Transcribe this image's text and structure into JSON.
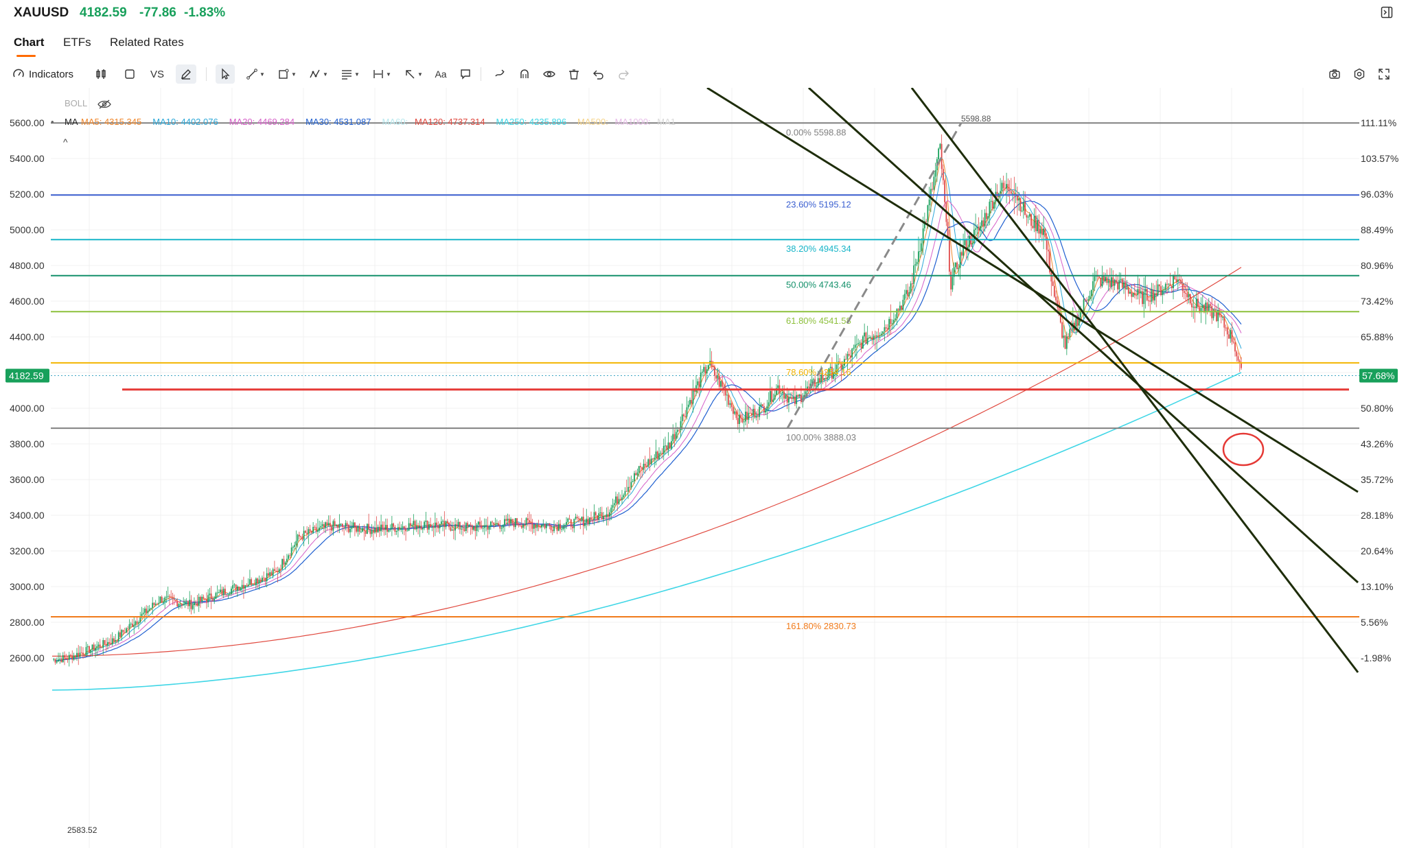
{
  "header": {
    "symbol": "XAUUSD",
    "price": "4182.59",
    "change": "-77.86",
    "change_pct": "-1.83%",
    "price_color": "#18a05b"
  },
  "tabs": [
    {
      "label": "Chart",
      "active": true
    },
    {
      "label": "ETFs",
      "active": false
    },
    {
      "label": "Related Rates",
      "active": false
    }
  ],
  "toolbar": {
    "indicators_label": "Indicators",
    "vs_label": "VS",
    "text_tool_label": "Aa",
    "icons": [
      "gauge-icon",
      "candlestick-icon",
      "square-icon",
      "pen-icon",
      "cursor-icon",
      "line-tool-icon",
      "shape-tool-icon",
      "pattern-tool-icon",
      "fib-tool-icon",
      "measure-tool-icon",
      "arrow-tool-icon",
      "text-tool-icon",
      "comment-icon",
      "brush-icon",
      "magnet-icon",
      "eye-icon",
      "trash-icon",
      "undo-icon",
      "redo-icon",
      "camera-icon",
      "settings-icon",
      "fullscreen-icon"
    ]
  },
  "legend": {
    "boll_label": "BOLL",
    "ma_label": "MA",
    "ma_items": [
      {
        "text": "MA5: 4315.345",
        "color": "#f0862a"
      },
      {
        "text": "MA10: 4402.076",
        "color": "#2aa7d8"
      },
      {
        "text": "MA20: 4469.284",
        "color": "#d660c8"
      },
      {
        "text": "MA30: 4531.087",
        "color": "#1f5fd0"
      },
      {
        "text": "MA60:",
        "color": "#b7e8ee"
      },
      {
        "text": "MA120: 4737.314",
        "color": "#e0483e"
      },
      {
        "text": "MA250: 4235.896",
        "color": "#3fd6e6"
      },
      {
        "text": "MA500:",
        "color": "#f6d48a"
      },
      {
        "text": "MA1000:",
        "color": "#e7bde8"
      },
      {
        "text": "MA1",
        "color": "#d9d9d9"
      }
    ]
  },
  "y_axis": {
    "left": [
      "5600.00",
      "5400.00",
      "5200.00",
      "5000.00",
      "4800.00",
      "4600.00",
      "4400.00",
      "4200.00",
      "4000.00",
      "3800.00",
      "3600.00",
      "3400.00",
      "3200.00",
      "3000.00",
      "2800.00",
      "2600.00"
    ],
    "right": [
      "111.11%",
      "103.57%",
      "96.03%",
      "88.49%",
      "80.96%",
      "73.42%",
      "65.88%",
      "",
      "50.80%",
      "43.26%",
      "35.72%",
      "28.18%",
      "20.64%",
      "13.10%",
      "5.56%",
      "-1.98%"
    ],
    "current_price_tag": "4182.59",
    "current_pct_tag": "57.68%",
    "current_tag_color": "#18a05b"
  },
  "fib_levels": [
    {
      "label": "0.00% 5598.88",
      "value": 5598.88,
      "color": "#808080"
    },
    {
      "label": "23.60% 5195.12",
      "value": 5195.12,
      "color": "#3a5fd0"
    },
    {
      "label": "38.20% 4945.34",
      "value": 4945.34,
      "color": "#17b5c8"
    },
    {
      "label": "50.00% 4743.46",
      "value": 4743.46,
      "color": "#13906a"
    },
    {
      "label": "61.80% 4541.58",
      "value": 4541.58,
      "color": "#8dc03c"
    },
    {
      "label": "78.60% 4254.16",
      "value": 4254.16,
      "color": "#f2b400"
    },
    {
      "label": "100.00% 3888.03",
      "value": 3888.03,
      "color": "#808080"
    },
    {
      "label": "161.80% 2830.73",
      "value": 2830.73,
      "color": "#f07a1a"
    }
  ],
  "annotations": {
    "high_label": "5598.88",
    "low_label": "2583.52",
    "support_line_value": 4105,
    "support_color": "#e53935",
    "channel_color": "#1e2d0a"
  }
}
